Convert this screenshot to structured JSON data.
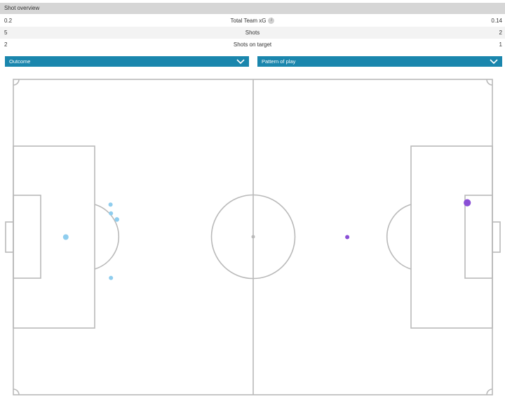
{
  "header": {
    "title": "Shot overview"
  },
  "stats": [
    {
      "home": "0.2",
      "label": "Total Team xG",
      "away": "0.14",
      "info_icon": "info-icon"
    },
    {
      "home": "5",
      "label": "Shots",
      "away": "2"
    },
    {
      "home": "2",
      "label": "Shots on target",
      "away": "1"
    }
  ],
  "filters": {
    "outcome_label": "Outcome",
    "pattern_label": "Pattern of play",
    "chevron_icon": "chevron-down-icon"
  },
  "colors": {
    "header_bg": "#d6d6d6",
    "dropdown_bg": "#1a86ad",
    "pitch_lines": "#b9b9b9",
    "home_shot": "#8fcdee",
    "away_shot": "#8a4fd6"
  },
  "shots": {
    "home": [
      {
        "x": 11.5,
        "y": 34.0,
        "xg": 0.06
      },
      {
        "x": 21.3,
        "y": 27.0,
        "xg": 0.02
      },
      {
        "x": 21.4,
        "y": 28.9,
        "xg": 0.02
      },
      {
        "x": 22.7,
        "y": 30.2,
        "xg": 0.03
      },
      {
        "x": 21.4,
        "y": 42.8,
        "xg": 0.02
      }
    ],
    "away": [
      {
        "x": 73.2,
        "y": 34.0,
        "xg": 0.02
      },
      {
        "x": 99.5,
        "y": 26.6,
        "xg": 0.12
      }
    ]
  }
}
